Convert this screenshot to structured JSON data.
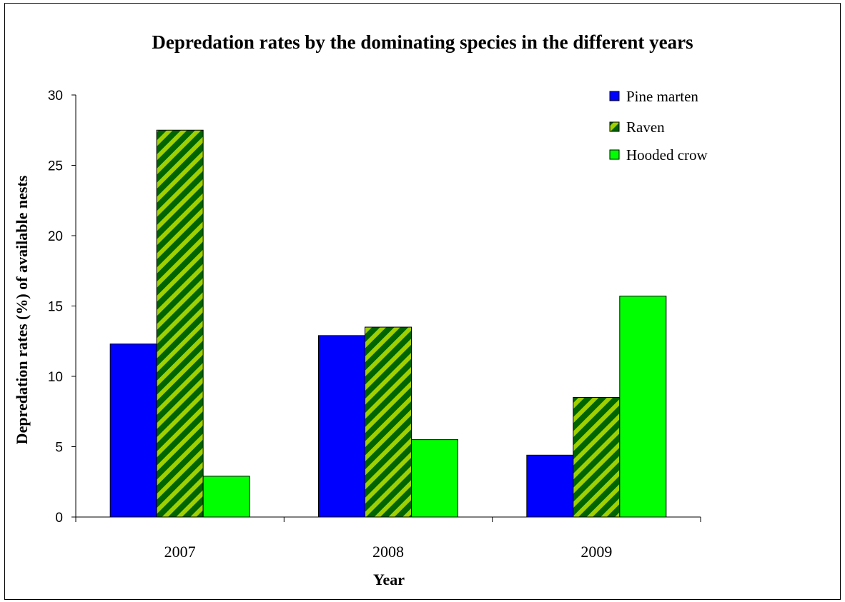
{
  "chart_data": {
    "type": "bar",
    "title": "Depredation rates by the dominating species in the different years",
    "xlabel": "Year",
    "ylabel": "Depredation rates (%) of available nests",
    "ylim": [
      0,
      30
    ],
    "yticks": [
      "0",
      "5",
      "10",
      "15",
      "20",
      "25",
      "30"
    ],
    "categories": [
      "2007",
      "2008",
      "2009"
    ],
    "series": [
      {
        "name": "Pine marten",
        "values": [
          12.3,
          12.9,
          4.4
        ],
        "color": "#0000ff",
        "pattern": "solid"
      },
      {
        "name": "Raven",
        "values": [
          27.5,
          13.5,
          8.5
        ],
        "color": "#006400",
        "pattern": "diagonal-stripes",
        "stripe_color": "#a0d000"
      },
      {
        "name": "Hooded crow",
        "values": [
          2.9,
          5.5,
          15.7
        ],
        "color": "#00ff00",
        "pattern": "solid"
      }
    ],
    "grid": false,
    "legend_position": "top-right"
  }
}
